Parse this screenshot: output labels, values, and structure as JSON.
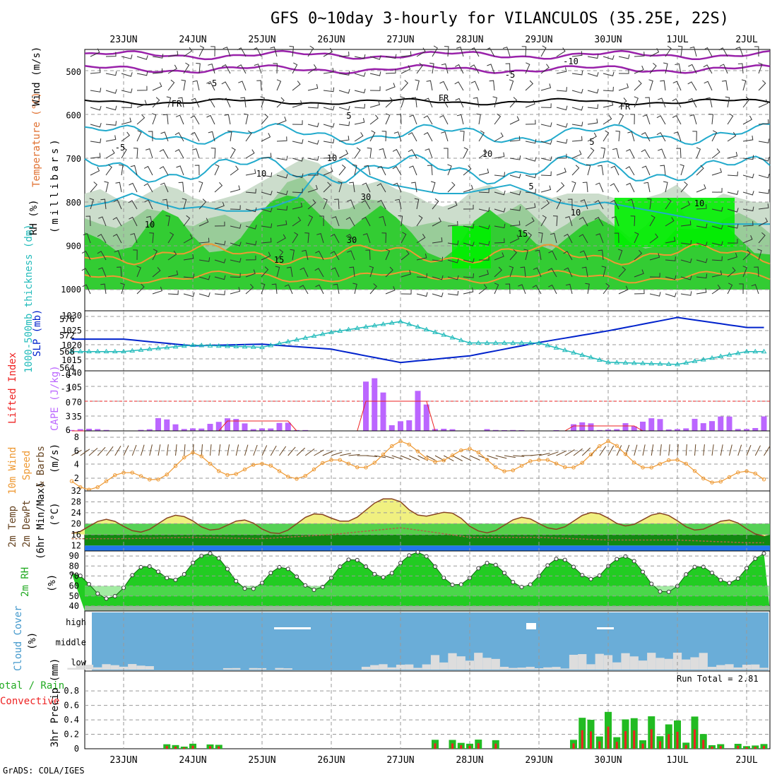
{
  "title": "GFS 0~10day 3-hourly for VILANCULOS (35.25E, 22S)",
  "credit": "GrADS: COLA/IGES",
  "dates": [
    "23JUN",
    "24JUN",
    "25JUN",
    "26JUN",
    "27JUN",
    "28JUN",
    "29JUN",
    "30JUN",
    "1JUL",
    "2JUL"
  ],
  "colors": {
    "rh_bright": "#00f000",
    "rh_mid": "#33cc33",
    "rh_light": "#99cc99",
    "rh_pale": "#ccddcc",
    "slp": "#0022cc",
    "thickness": "#22bbbb",
    "cape": "#bb66ff",
    "lifted": "#ee2222",
    "wind": "#ee9933",
    "barb": "#664422",
    "temp_fill_yellow": "#f0f080",
    "temp_fill_orange": "#f0a040",
    "cloud_bg": "#6aadd8",
    "cloud_fill": "#dddddd",
    "precip_green": "#22bb22",
    "precip_red": "#ee2222"
  },
  "panels": {
    "upper": {
      "y_label_parts": [
        "RH (%)",
        "Temperature (°C)",
        "Wind (m/s)"
      ],
      "y_axis_label": "(millibars)",
      "y_ticks": [
        "500",
        "600",
        "700",
        "800",
        "900",
        "1000"
      ],
      "contour_labels": [
        "-10",
        "-5",
        "-5",
        "FR",
        "FR",
        "FR",
        "5",
        "5",
        "-5",
        "10",
        "10",
        "10",
        "10",
        "15",
        "15",
        "10",
        "30",
        "30",
        "10",
        "5"
      ]
    },
    "slp": {
      "left_label": "1000-500mb thickness (dm)",
      "right_label": "SLP (mb)",
      "left_ticks": [
        "576",
        "572",
        "568",
        "564"
      ],
      "right_ticks": [
        "1030",
        "1025",
        "1020",
        "1015"
      ]
    },
    "cape": {
      "left_label": "Lifted Index",
      "right_label": "CAPE (J/kg)",
      "left_ticks": [
        "-6",
        "-3",
        "0",
        "3",
        "6"
      ],
      "right_ticks": [
        "140",
        "105",
        "70",
        "35"
      ]
    },
    "wind10": {
      "label_parts": [
        "10m Wind",
        "Speed",
        "& Barbs",
        "(m/s)"
      ],
      "y_ticks": [
        "8",
        "6",
        "4",
        "2"
      ]
    },
    "temp": {
      "label_parts": [
        "2m Temp",
        "2m DewPt",
        "(6hr Min/Max)",
        "(°C)"
      ],
      "y_ticks": [
        "32",
        "28",
        "24",
        "20",
        "16",
        "12"
      ]
    },
    "rh": {
      "label_parts": [
        "2m RH",
        "(%)"
      ],
      "y_ticks": [
        "90",
        "80",
        "70",
        "60",
        "50",
        "40"
      ]
    },
    "cloud": {
      "label_parts": [
        "Cloud Cover",
        "(%)"
      ],
      "levels": [
        "high",
        "middle",
        "low"
      ]
    },
    "precip": {
      "label_parts": [
        "Total / Rain",
        "Convective",
        "3hr Precip (mm)"
      ],
      "run_total": "Run Total = 2.81",
      "y_ticks": [
        "0.8",
        "0.6",
        "0.4",
        "0.2",
        "0"
      ]
    }
  },
  "chart_data": [
    {
      "type": "area",
      "name": "upper-air cross-section",
      "xlabel": "",
      "ylabel": "(millibars)",
      "ylim": [
        1000,
        450
      ],
      "rh_low_layer_top_mb": [
        780,
        770,
        790,
        800,
        780,
        760,
        770,
        790,
        800,
        790,
        780,
        760,
        740,
        720,
        700,
        710,
        740,
        760,
        760,
        750,
        770,
        780,
        800,
        810,
        800,
        770,
        760,
        780,
        770,
        780,
        790,
        780,
        780,
        780,
        790,
        800,
        790,
        780,
        760,
        790,
        800,
        780,
        790,
        800,
        800
      ],
      "isotherm_10C_mb": [
        810,
        800,
        780,
        800,
        815,
        810,
        820,
        820,
        810,
        790,
        720,
        700,
        740,
        760,
        770,
        780,
        780,
        770,
        760,
        780,
        800,
        810,
        800,
        810,
        820,
        830,
        840,
        850,
        850,
        850
      ]
    },
    {
      "type": "line",
      "name": "SLP and thickness",
      "x": [
        "23JUN",
        "24JUN",
        "25JUN",
        "26JUN",
        "27JUN",
        "28JUN",
        "29JUN",
        "30JUN",
        "1JUL",
        "2JUL"
      ],
      "series": [
        {
          "name": "SLP (mb)",
          "values": [
            1022.5,
            1020.5,
            1021,
            1019.5,
            1015.5,
            1017.5,
            1021.5,
            1025,
            1029,
            1026
          ]
        },
        {
          "name": "1000-500mb thickness (dm)",
          "values": [
            567.5,
            569,
            568.5,
            572,
            574.5,
            569.5,
            569.5,
            565,
            564.5,
            567.5
          ]
        }
      ]
    },
    {
      "type": "bar",
      "name": "CAPE and Lifted Index",
      "x": [
        "23JUN",
        "24JUN",
        "25JUN",
        "26JUN",
        "27JUN",
        "28JUN",
        "29JUN",
        "30JUN",
        "1JUL",
        "2JUL"
      ],
      "series": [
        {
          "name": "CAPE (J/kg)",
          "values": [
            5,
            30,
            30,
            2,
            125,
            5,
            2,
            20,
            30,
            35
          ]
        },
        {
          "name": "Lifted Index",
          "values": [
            6,
            6,
            4,
            6,
            0,
            6,
            6,
            5,
            6,
            6
          ]
        }
      ],
      "ylim": [
        0,
        140
      ]
    },
    {
      "type": "line",
      "name": "10m Wind Speed",
      "x": [
        "23JUN",
        "24JUN",
        "25JUN",
        "26JUN",
        "27JUN",
        "28JUN",
        "29JUN",
        "30JUN",
        "1JUL",
        "2JUL"
      ],
      "values": [
        1.8,
        4.5,
        3.0,
        3.5,
        6.0,
        5.0,
        3.5,
        6.0,
        3.5,
        2.0
      ],
      "ylim": [
        0.5,
        8.5
      ]
    },
    {
      "type": "area",
      "name": "2m Temp and DewPt",
      "x": [
        "23JUN",
        "24JUN",
        "25JUN",
        "26JUN",
        "27JUN",
        "28JUN",
        "29JUN",
        "30JUN",
        "1JUL",
        "2JUL"
      ],
      "series": [
        {
          "name": "2m Temp",
          "values": [
            19,
            21,
            18,
            22,
            28,
            19,
            20,
            22,
            21,
            18
          ]
        },
        {
          "name": "2m DewPt",
          "values": [
            14.5,
            15,
            14.5,
            16,
            18.5,
            15,
            15,
            14,
            14,
            13
          ]
        }
      ],
      "ylim": [
        10,
        32
      ]
    },
    {
      "type": "area",
      "name": "2m RH",
      "x": [
        "23JUN",
        "24JUN",
        "25JUN",
        "26JUN",
        "27JUN",
        "28JUN",
        "29JUN",
        "30JUN",
        "1JUL",
        "2JUL"
      ],
      "values": [
        60,
        85,
        65,
        70,
        85,
        70,
        72,
        82,
        62,
        80
      ],
      "ylim": [
        40,
        90
      ]
    },
    {
      "type": "area",
      "name": "Cloud Cover",
      "x": [
        "23JUN",
        "24JUN",
        "25JUN",
        "26JUN",
        "27JUN",
        "28JUN",
        "29JUN",
        "30JUN",
        "1JUL",
        "2JUL"
      ],
      "series": [
        {
          "name": "low",
          "values": [
            10,
            0,
            3,
            0,
            10,
            30,
            5,
            30,
            30,
            10
          ]
        },
        {
          "name": "high",
          "values": [
            0,
            0,
            0,
            5,
            0,
            0,
            10,
            0,
            0,
            0
          ]
        }
      ]
    },
    {
      "type": "bar",
      "name": "3hr Precip",
      "x": [
        "23JUN",
        "24JUN",
        "25JUN",
        "26JUN",
        "27JUN",
        "28JUN",
        "29JUN",
        "30JUN",
        "1JUL",
        "2JUL"
      ],
      "values": [
        0,
        0.07,
        0,
        0,
        0,
        0.13,
        0,
        0.51,
        0.45,
        0.07
      ],
      "ylim": [
        0,
        1
      ]
    }
  ]
}
